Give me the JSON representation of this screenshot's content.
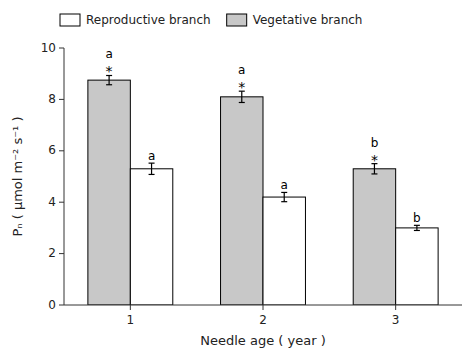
{
  "chart_data": {
    "type": "bar",
    "xlabel": "Needle age ( year )",
    "ylabel": "Pₙ  ( µmol m⁻² s⁻¹ )",
    "categories": [
      "1",
      "2",
      "3"
    ],
    "series": [
      {
        "name": "Vegetative branch",
        "color": "#c8c8c8",
        "values": [
          8.75,
          8.1,
          5.3
        ],
        "errors": [
          0.18,
          0.22,
          0.2
        ],
        "annotations": [
          [
            "*",
            "a"
          ],
          [
            "*",
            "a"
          ],
          [
            "*",
            "b"
          ]
        ]
      },
      {
        "name": "Reproductive branch",
        "color": "#ffffff",
        "values": [
          5.3,
          4.2,
          3.0
        ],
        "errors": [
          0.22,
          0.18,
          0.1
        ],
        "annotations": [
          [
            "a"
          ],
          [
            "a"
          ],
          [
            "b"
          ]
        ]
      }
    ],
    "ylim": [
      0,
      10
    ],
    "yticks": [
      0,
      2,
      4,
      6,
      8,
      10
    ],
    "grid": false
  }
}
